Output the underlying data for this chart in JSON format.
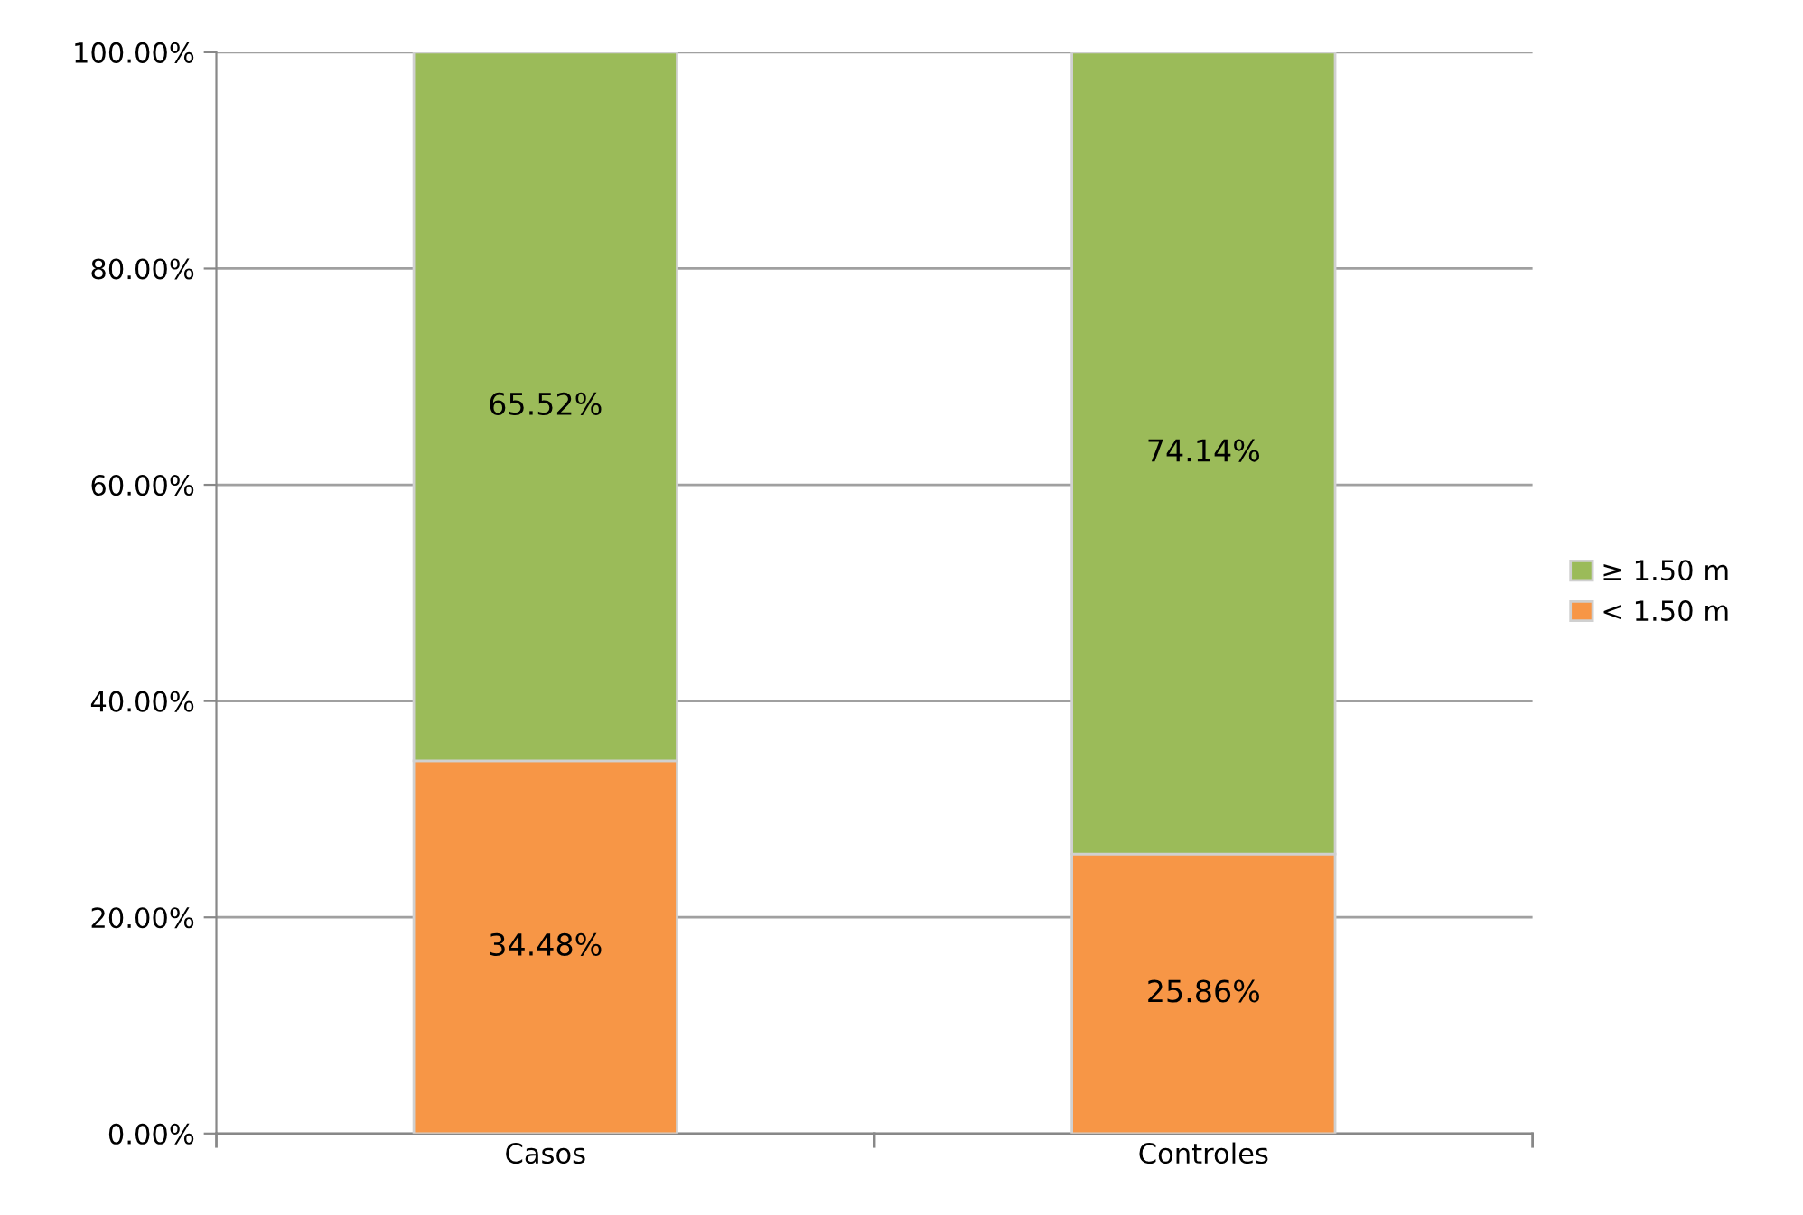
{
  "chart_data": {
    "type": "bar",
    "stacked": true,
    "categories": [
      "Casos",
      "Controles"
    ],
    "series": [
      {
        "name": "< 1.50 m",
        "color": "#f79646",
        "values": [
          34.48,
          25.86
        ],
        "value_labels": [
          "34.48%",
          "25.86%"
        ]
      },
      {
        "name": "≥ 1.50 m",
        "color": "#9bbb59",
        "values": [
          65.52,
          74.14
        ],
        "value_labels": [
          "65.52%",
          "74.14%"
        ]
      }
    ],
    "ylim": [
      0,
      100
    ],
    "yticks": [
      {
        "value": 0,
        "label": "0.00%"
      },
      {
        "value": 20,
        "label": "20.00%"
      },
      {
        "value": 40,
        "label": "40.00%"
      },
      {
        "value": 60,
        "label": "60.00%"
      },
      {
        "value": 80,
        "label": "80.00%"
      },
      {
        "value": 100,
        "label": "100.00%"
      }
    ],
    "grid": "y",
    "legend": "right"
  }
}
